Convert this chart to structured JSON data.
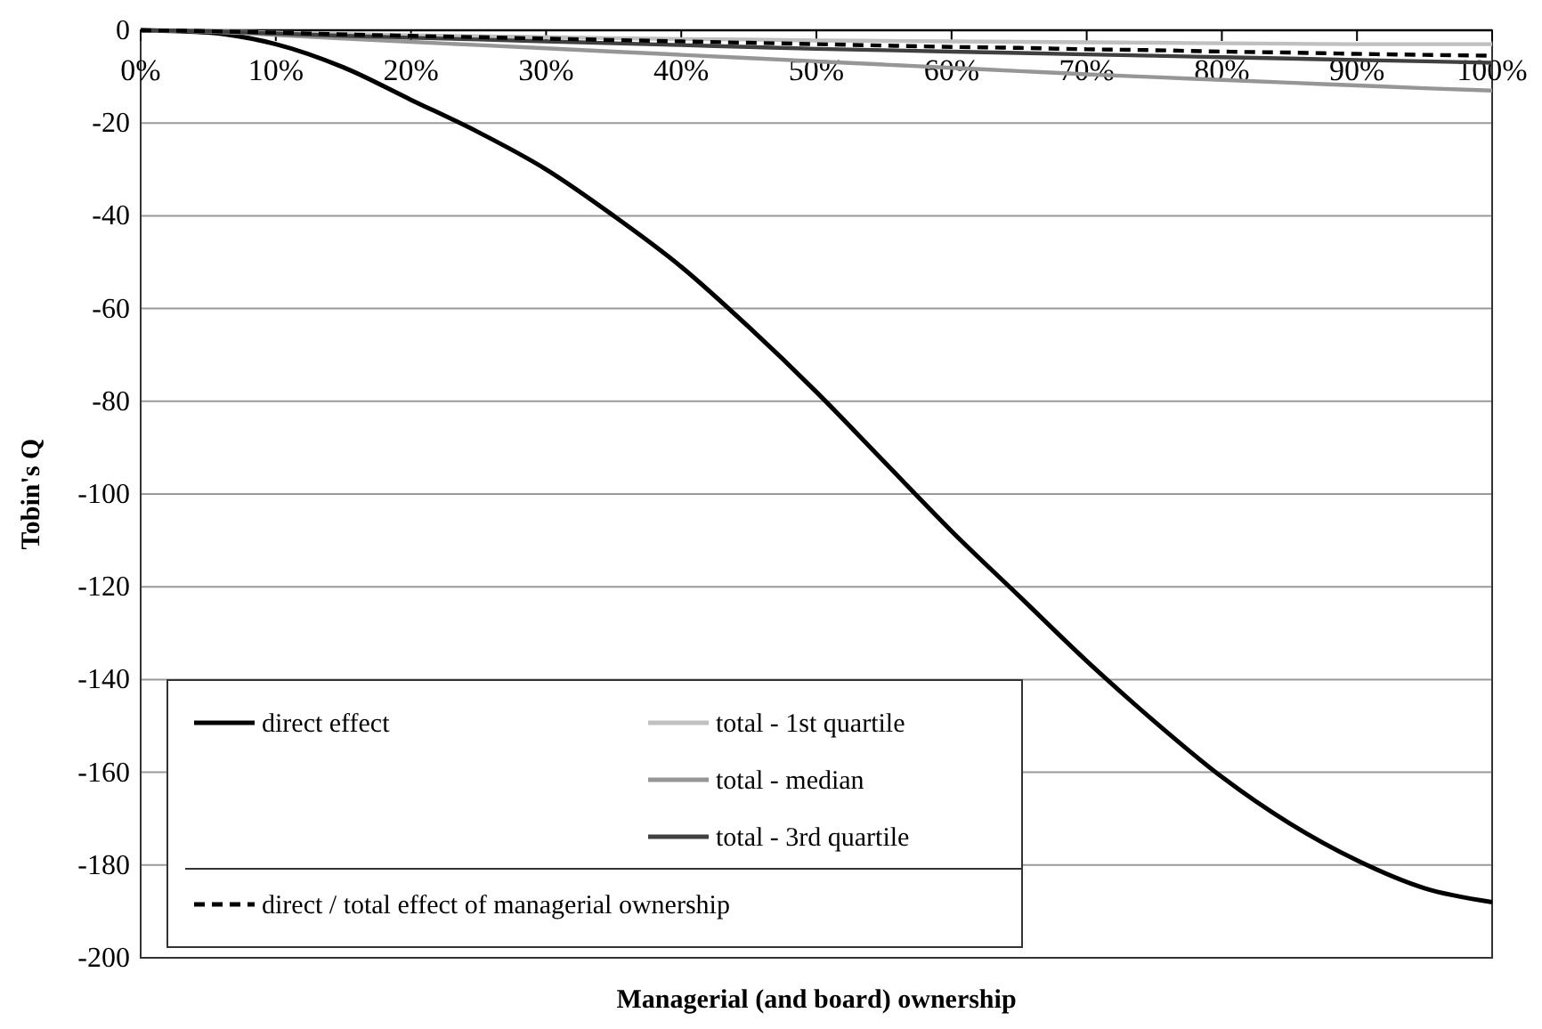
{
  "chart_data": {
    "type": "line",
    "xlabel": "Managerial (and board) ownership",
    "ylabel": "Tobin's Q",
    "x": [
      0,
      5,
      10,
      15,
      20,
      25,
      30,
      35,
      40,
      45,
      50,
      55,
      60,
      65,
      70,
      75,
      80,
      85,
      90,
      95,
      100
    ],
    "xlim": [
      0,
      100
    ],
    "xticks": [
      {
        "value": 0,
        "label": "0%"
      },
      {
        "value": 10,
        "label": "10%"
      },
      {
        "value": 20,
        "label": "20%"
      },
      {
        "value": 30,
        "label": "30%"
      },
      {
        "value": 40,
        "label": "40%"
      },
      {
        "value": 50,
        "label": "50%"
      },
      {
        "value": 60,
        "label": "60%"
      },
      {
        "value": 70,
        "label": "70%"
      },
      {
        "value": 80,
        "label": "80%"
      },
      {
        "value": 90,
        "label": "90%"
      },
      {
        "value": 100,
        "label": "100%"
      }
    ],
    "ylim": [
      -200,
      0
    ],
    "yticks": [
      0,
      -20,
      -40,
      -60,
      -80,
      -100,
      -120,
      -140,
      -160,
      -180,
      -200
    ],
    "grid": "y",
    "legend": "bottom left",
    "marker": "none",
    "series": [
      {
        "name": "direct effect",
        "color": "#000000",
        "values": [
          0,
          -0.5,
          -3,
          -8,
          -15,
          -22,
          -30,
          -40,
          -51,
          -64,
          -78,
          -93,
          -108,
          -122,
          -136,
          -149,
          -161,
          -171,
          -179,
          -185,
          -188
        ]
      },
      {
        "name": "total - 1st quartile",
        "color": "#c0c0c0",
        "values": [
          0,
          -0.2,
          -0.5,
          -0.8,
          -1.1,
          -1.3,
          -1.5,
          -1.7,
          -1.9,
          -2,
          -2.2,
          -2.3,
          -2.4,
          -2.5,
          -2.6,
          -2.7,
          -2.8,
          -2.9,
          -3,
          -3,
          -3
        ]
      },
      {
        "name": "total - median",
        "color": "#969696",
        "values": [
          0,
          -0.3,
          -1,
          -1.8,
          -2.5,
          -3.2,
          -3.9,
          -4.6,
          -5.3,
          -6,
          -6.7,
          -7.4,
          -8.1,
          -8.8,
          -9.5,
          -10.1,
          -10.7,
          -11.3,
          -11.9,
          -12.5,
          -13
        ]
      },
      {
        "name": "total - 3rd quartile",
        "color": "#404040",
        "values": [
          0,
          -0.2,
          -0.7,
          -1.2,
          -1.6,
          -2,
          -2.4,
          -2.8,
          -3.2,
          -3.6,
          -4,
          -4.3,
          -4.6,
          -4.9,
          -5.2,
          -5.5,
          -5.8,
          -6.1,
          -6.4,
          -6.7,
          -7
        ]
      },
      {
        "name": "direct / total effect of managerial ownership",
        "color": "#000000",
        "line_style": "dashed",
        "values": [
          0,
          -0.2,
          -0.5,
          -0.9,
          -1.2,
          -1.5,
          -1.8,
          -2.1,
          -2.4,
          -2.7,
          -3,
          -3.3,
          -3.6,
          -3.8,
          -4.1,
          -4.3,
          -4.6,
          -4.8,
          -5.1,
          -5.3,
          -5.5
        ]
      }
    ]
  }
}
